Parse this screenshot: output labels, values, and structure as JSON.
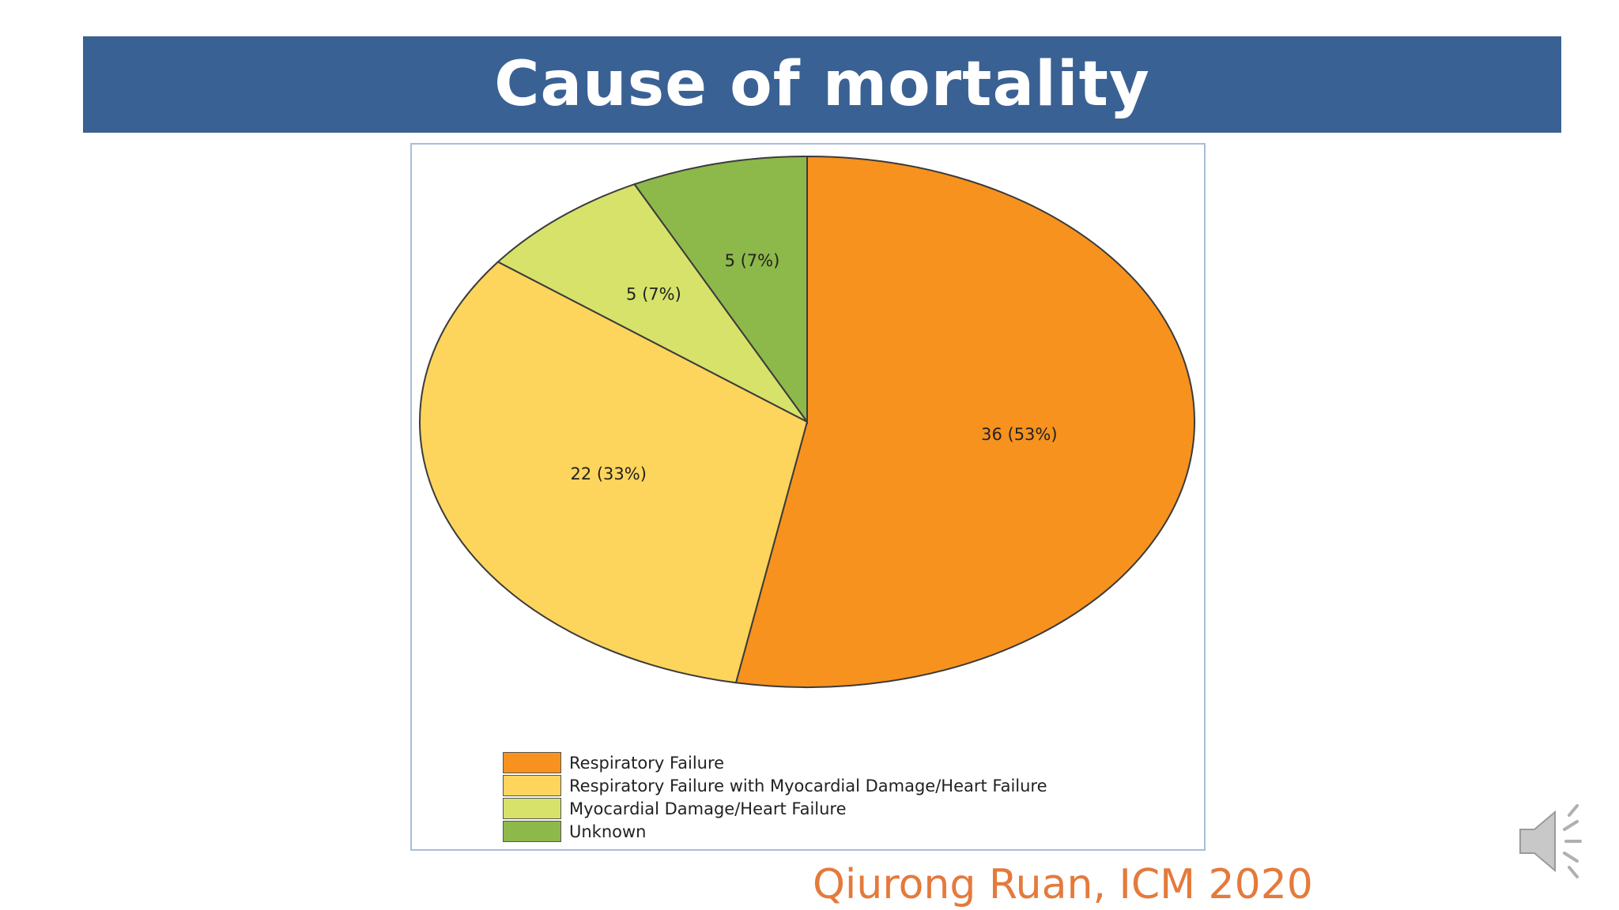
{
  "slide": {
    "title": "Cause of mortality",
    "citation": "Qiurong Ruan, ICM 2020"
  },
  "colors": {
    "title_bar": "#3a6194",
    "citation": "#e47a3c"
  },
  "speaker_icon": "speaker-volume-icon",
  "chart_data": {
    "type": "pie",
    "title": "",
    "start_angle_deg": 0,
    "direction": "clockwise",
    "slices": [
      {
        "label": "Respiratory Failure",
        "value": 36,
        "percent": 53,
        "data_label": "36 (53%)",
        "color": "#f7921e"
      },
      {
        "label": "Respiratory Failure with Myocardial Damage/Heart Failure",
        "value": 22,
        "percent": 33,
        "data_label": "22 (33%)",
        "color": "#fdd55c"
      },
      {
        "label": "Myocardial Damage/Heart Failure",
        "value": 5,
        "percent": 7,
        "data_label": "5 (7%)",
        "color": "#d6e26a"
      },
      {
        "label": "Unknown",
        "value": 5,
        "percent": 7,
        "data_label": "5 (7%)",
        "color": "#8db84a"
      }
    ],
    "legend": {
      "position": "bottom-left"
    }
  }
}
